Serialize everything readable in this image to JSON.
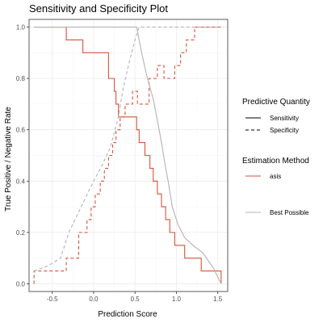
{
  "chart_data": {
    "type": "line",
    "title": "Sensitivity and Specificity Plot",
    "xlabel": "Prediction Score",
    "ylabel": "True Positive / Negative Rate",
    "xlim": [
      -0.78,
      1.62
    ],
    "ylim": [
      -0.03,
      1.03
    ],
    "x_ticks": [
      -0.5,
      0.0,
      0.5,
      1.0,
      1.5
    ],
    "x_tick_labels": [
      "-0.5",
      "0.0",
      "0.5",
      "1.0",
      "1.5"
    ],
    "y_ticks": [
      0.0,
      0.2,
      0.4,
      0.6,
      0.8,
      1.0
    ],
    "y_tick_labels": [
      "0.0",
      "0.2",
      "0.4",
      "0.6",
      "0.8",
      "1.0"
    ],
    "grid": true,
    "legend": {
      "placement": "right",
      "linetype_title": "Predictive Quantity",
      "linetype_items": [
        {
          "label": "Sensitivity",
          "dash": "solid"
        },
        {
          "label": "Specificity",
          "dash": "dashed"
        }
      ],
      "color_title": "Estimation Method",
      "color_items": [
        {
          "label": "asis",
          "color": "#d8523a"
        },
        {
          "label": "Best Possible",
          "color": "#b3b3b3"
        }
      ]
    },
    "series": [
      {
        "name": "asis",
        "quantity": "Sensitivity",
        "color": "#d8523a",
        "dash": "solid",
        "step": true,
        "x": [
          -0.72,
          -0.33,
          -0.33,
          -0.13,
          -0.13,
          0.18,
          0.18,
          0.25,
          0.25,
          0.27,
          0.27,
          0.3,
          0.3,
          0.32,
          0.32,
          0.52,
          0.52,
          0.55,
          0.55,
          0.62,
          0.62,
          0.68,
          0.68,
          0.72,
          0.72,
          0.77,
          0.77,
          0.82,
          0.82,
          0.87,
          0.87,
          0.92,
          0.92,
          0.98,
          0.98,
          1.1,
          1.1,
          1.3,
          1.3,
          1.48,
          1.48,
          1.54,
          1.54
        ],
        "y": [
          1.0,
          1.0,
          0.95,
          0.95,
          0.9,
          0.9,
          0.8,
          0.8,
          0.75,
          0.75,
          0.7,
          0.7,
          0.65,
          0.65,
          0.65,
          0.65,
          0.6,
          0.6,
          0.55,
          0.55,
          0.5,
          0.5,
          0.45,
          0.45,
          0.4,
          0.4,
          0.35,
          0.35,
          0.3,
          0.3,
          0.25,
          0.25,
          0.2,
          0.2,
          0.15,
          0.15,
          0.1,
          0.1,
          0.05,
          0.05,
          0.05,
          0.05,
          0.0
        ]
      },
      {
        "name": "asis",
        "quantity": "Specificity",
        "color": "#d8523a",
        "dash": "dashed",
        "step": true,
        "x": [
          -0.72,
          -0.72,
          -0.33,
          -0.33,
          -0.18,
          -0.18,
          -0.08,
          -0.08,
          -0.03,
          -0.03,
          0.02,
          0.02,
          0.08,
          0.08,
          0.13,
          0.13,
          0.18,
          0.18,
          0.23,
          0.23,
          0.27,
          0.27,
          0.32,
          0.32,
          0.38,
          0.38,
          0.47,
          0.47,
          0.53,
          0.53,
          0.67,
          0.67,
          0.77,
          0.77,
          0.85,
          0.85,
          0.98,
          0.98,
          1.05,
          1.05,
          1.12,
          1.12,
          1.22,
          1.22,
          1.3,
          1.3,
          1.54
        ],
        "y": [
          0.0,
          0.05,
          0.05,
          0.1,
          0.1,
          0.2,
          0.2,
          0.25,
          0.25,
          0.3,
          0.3,
          0.35,
          0.35,
          0.4,
          0.4,
          0.45,
          0.45,
          0.5,
          0.5,
          0.55,
          0.55,
          0.6,
          0.6,
          0.65,
          0.65,
          0.7,
          0.7,
          0.75,
          0.75,
          0.7,
          0.7,
          0.8,
          0.8,
          0.85,
          0.85,
          0.8,
          0.8,
          0.85,
          0.85,
          0.9,
          0.9,
          0.95,
          0.95,
          1.0,
          1.0,
          1.0,
          1.0
        ]
      },
      {
        "name": "Best Possible",
        "quantity": "Sensitivity",
        "color": "#b3b3b3",
        "dash": "solid",
        "step": false,
        "x": [
          -0.72,
          0.52,
          0.58,
          0.65,
          0.72,
          0.78,
          0.82,
          0.86,
          0.9,
          0.95,
          1.02,
          1.1,
          1.2,
          1.32,
          1.45,
          1.54
        ],
        "y": [
          1.0,
          1.0,
          0.9,
          0.8,
          0.72,
          0.62,
          0.55,
          0.47,
          0.4,
          0.3,
          0.23,
          0.18,
          0.15,
          0.12,
          0.06,
          0.0
        ]
      },
      {
        "name": "Best Possible",
        "quantity": "Specificity",
        "color": "#b3b3b3",
        "dash": "dashed",
        "step": false,
        "x": [
          -0.72,
          -0.55,
          -0.4,
          -0.3,
          -0.15,
          0.0,
          0.1,
          0.2,
          0.3,
          0.35,
          0.42,
          0.5,
          0.55,
          0.8,
          1.1,
          1.54
        ],
        "y": [
          0.05,
          0.07,
          0.1,
          0.2,
          0.3,
          0.4,
          0.46,
          0.53,
          0.65,
          0.75,
          0.85,
          0.95,
          1.0,
          1.0,
          1.0,
          1.0
        ]
      }
    ]
  }
}
